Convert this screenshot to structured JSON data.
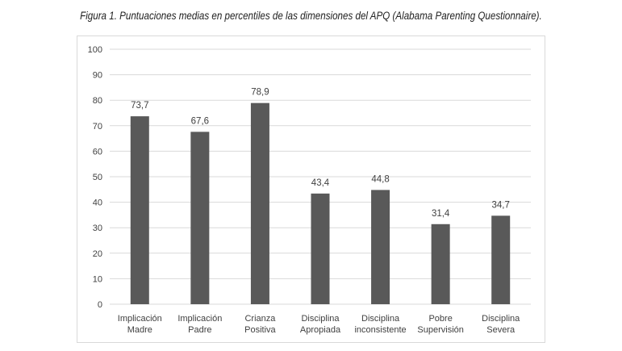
{
  "caption": "Figura 1. Puntuaciones medias en percentiles de las dimensiones del APQ (Alabama Parenting Questionnaire).",
  "chart_data": {
    "type": "bar",
    "title": "",
    "xlabel": "",
    "ylabel": "",
    "categories": [
      [
        "Implicación",
        "Madre"
      ],
      [
        "Implicación",
        "Padre"
      ],
      [
        "Crianza",
        "Positiva"
      ],
      [
        "Disciplina",
        "Apropiada"
      ],
      [
        "Disciplina",
        "inconsistente"
      ],
      [
        "Pobre",
        "Supervisión"
      ],
      [
        "Disciplina",
        "Severa"
      ]
    ],
    "values": [
      73.7,
      67.6,
      78.9,
      43.4,
      44.8,
      31.4,
      34.7
    ],
    "data_labels": [
      "73,7",
      "67,6",
      "78,9",
      "43,4",
      "44,8",
      "31,4",
      "34,7"
    ],
    "ylim": [
      0,
      100
    ],
    "yticks": [
      0,
      10,
      20,
      30,
      40,
      50,
      60,
      70,
      80,
      90,
      100
    ],
    "grid": true,
    "bar_color": "#595959",
    "grid_color": "#d9d9d9"
  }
}
